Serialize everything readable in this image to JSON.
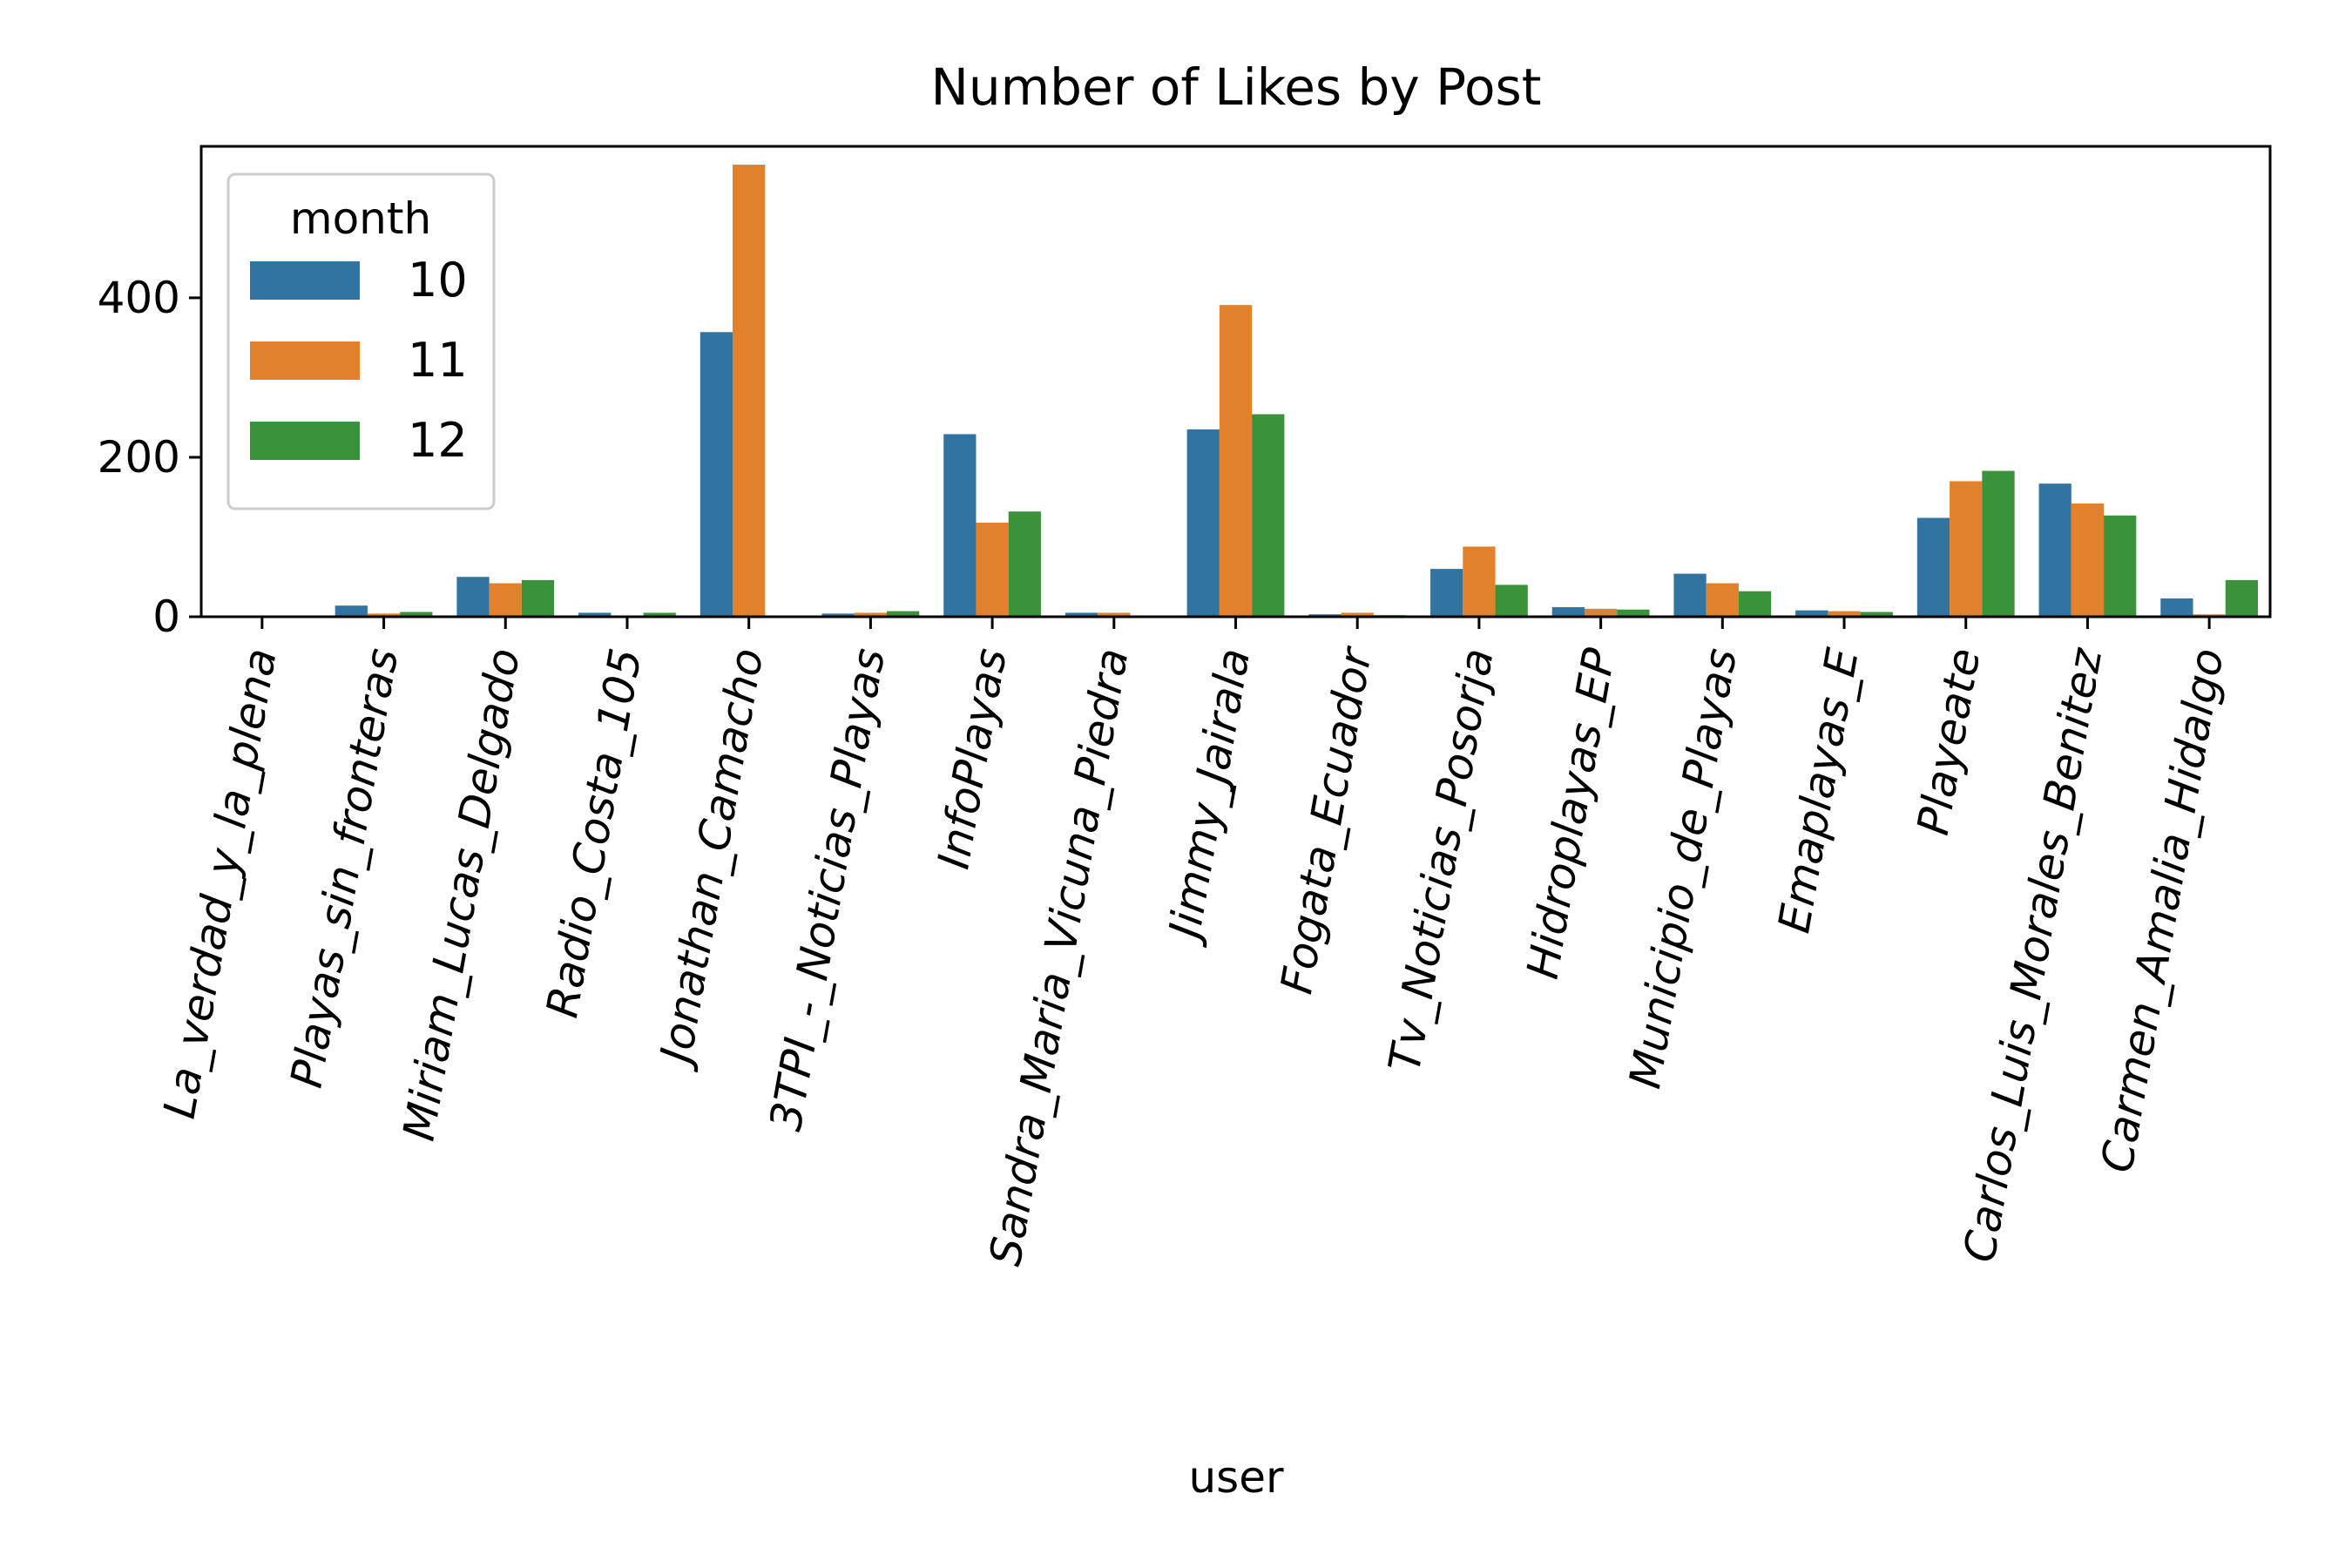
{
  "chart_data": {
    "type": "bar",
    "title": "Number of Likes by Post",
    "xlabel": "user",
    "ylabel": "",
    "ylim": [
      0,
      590
    ],
    "yticks": [
      0,
      200,
      400
    ],
    "legend": {
      "title": "month",
      "placement": "top-left"
    },
    "grid": false,
    "categories": [
      "La_verdad_y_la_plena",
      "Playas_sin_fronteras",
      "Miriam_Lucas_Delgado",
      "Radio_Costa_105",
      "Jonathan_Camacho",
      "3TPI_-_Noticias_Playas",
      "InfoPlayas",
      "Sandra_Maria_Vicuna_Piedra",
      "Jimmy_Jairala",
      "Fogata_Ecuador",
      "Tv_Noticias_Posorja",
      "Hidroplayas_EP",
      "Municipio_de_Playas",
      "Emaplayas_E",
      "Playeate",
      "Carlos_Luis_Morales_Benitez",
      "Carmen_Amalia_Hidalgo"
    ],
    "series": [
      {
        "name": "10",
        "color": "#3274a1",
        "values": [
          0,
          14,
          50,
          5,
          357,
          4,
          229,
          5,
          235,
          3,
          60,
          12,
          54,
          8,
          124,
          167,
          23
        ]
      },
      {
        "name": "11",
        "color": "#e1812c",
        "values": [
          0,
          4,
          42,
          1,
          567,
          5,
          118,
          5,
          391,
          5,
          88,
          10,
          42,
          7,
          170,
          142,
          3
        ]
      },
      {
        "name": "12",
        "color": "#3a923a",
        "values": [
          0,
          6,
          46,
          5,
          0,
          7,
          132,
          0,
          254,
          2,
          40,
          9,
          32,
          6,
          183,
          127,
          46
        ]
      }
    ]
  }
}
